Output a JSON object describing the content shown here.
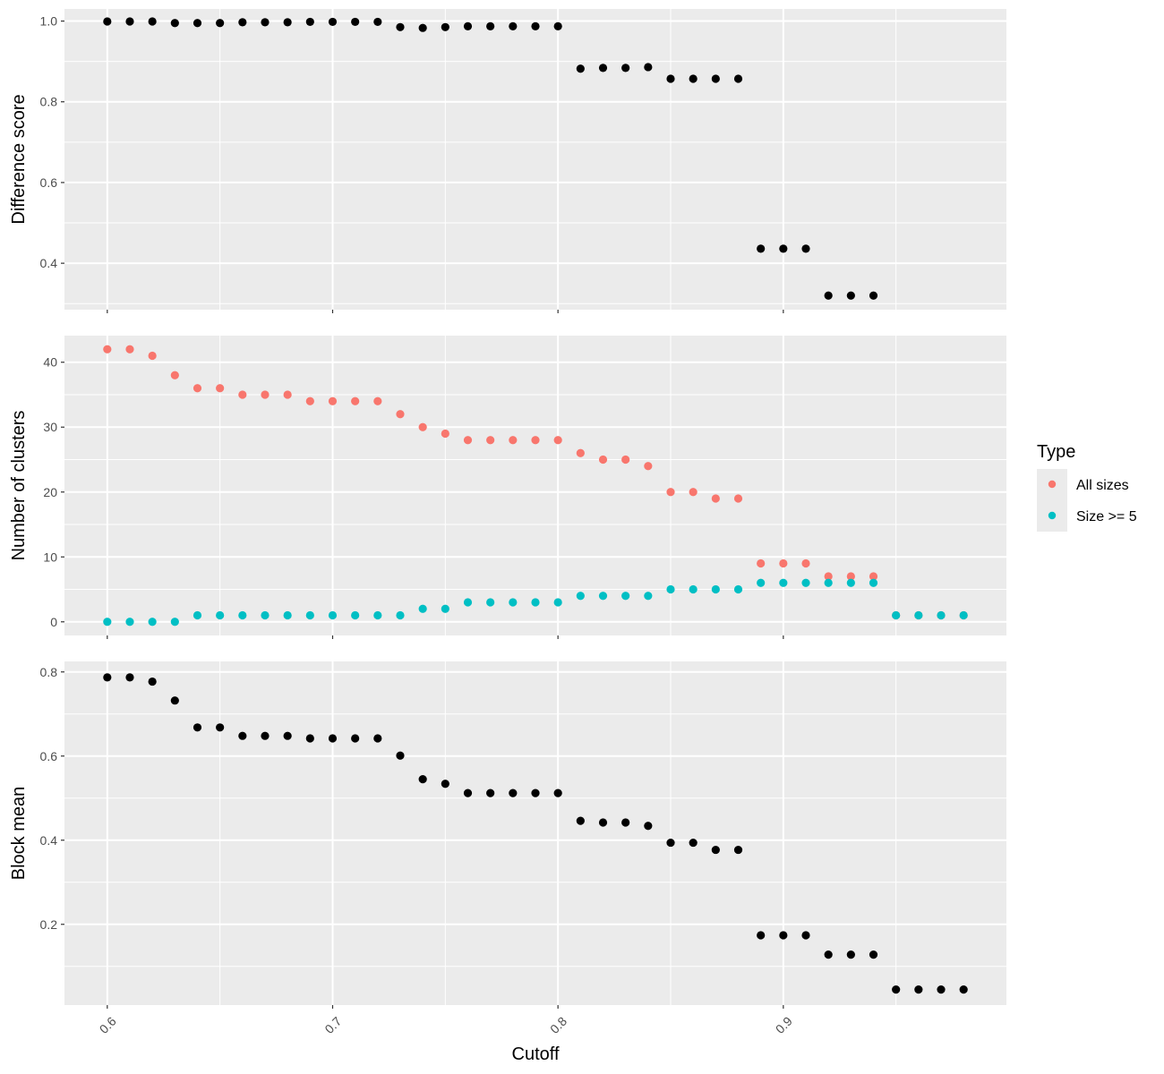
{
  "chart_data": [
    {
      "type": "scatter",
      "title": "",
      "xlabel": "",
      "ylabel": "Difference score",
      "xlim": [
        0.581,
        0.999
      ],
      "ylim": [
        0.285,
        1.03
      ],
      "yticks": [
        0.4,
        0.6,
        0.8,
        1.0
      ],
      "yticklabels": [
        "0.4",
        "0.6",
        "0.8",
        "1.0"
      ],
      "grid": true,
      "series": [
        {
          "color": "#000000",
          "x": [
            0.6,
            0.61,
            0.62,
            0.63,
            0.64,
            0.65,
            0.66,
            0.67,
            0.68,
            0.69,
            0.7,
            0.71,
            0.72,
            0.73,
            0.74,
            0.75,
            0.76,
            0.77,
            0.78,
            0.79,
            0.8,
            0.81,
            0.82,
            0.83,
            0.84,
            0.85,
            0.86,
            0.87,
            0.88,
            0.89,
            0.9,
            0.91,
            0.92,
            0.93,
            0.94
          ],
          "y": [
            0.999,
            0.999,
            0.999,
            0.995,
            0.995,
            0.995,
            0.997,
            0.997,
            0.997,
            0.998,
            0.998,
            0.998,
            0.998,
            0.985,
            0.983,
            0.985,
            0.987,
            0.987,
            0.987,
            0.987,
            0.987,
            0.882,
            0.884,
            0.884,
            0.886,
            0.857,
            0.857,
            0.857,
            0.857,
            0.436,
            0.436,
            0.436,
            0.32,
            0.32,
            0.32
          ]
        }
      ]
    },
    {
      "type": "scatter",
      "title": "",
      "xlabel": "",
      "ylabel": "Number of clusters",
      "xlim": [
        0.581,
        0.999
      ],
      "ylim": [
        -2.1,
        44.1
      ],
      "yticks": [
        0,
        10,
        20,
        30,
        40
      ],
      "yticklabels": [
        "0",
        "10",
        "20",
        "30",
        "40"
      ],
      "grid": true,
      "legend": {
        "title": "Type",
        "placement": "right",
        "entries": [
          {
            "label": "All sizes",
            "color": "#F8766D"
          },
          {
            "label": "Size >= 5",
            "color": "#00BFC4"
          }
        ]
      },
      "series": [
        {
          "name": "All sizes",
          "color": "#F8766D",
          "x": [
            0.6,
            0.61,
            0.62,
            0.63,
            0.64,
            0.65,
            0.66,
            0.67,
            0.68,
            0.69,
            0.7,
            0.71,
            0.72,
            0.73,
            0.74,
            0.75,
            0.76,
            0.77,
            0.78,
            0.79,
            0.8,
            0.81,
            0.82,
            0.83,
            0.84,
            0.85,
            0.86,
            0.87,
            0.88,
            0.89,
            0.9,
            0.91,
            0.92,
            0.93,
            0.94,
            0.95,
            0.96,
            0.97,
            0.98
          ],
          "y": [
            42,
            42,
            41,
            38,
            36,
            36,
            35,
            35,
            35,
            34,
            34,
            34,
            34,
            32,
            30,
            29,
            28,
            28,
            28,
            28,
            28,
            26,
            25,
            25,
            24,
            20,
            20,
            19,
            19,
            9,
            9,
            9,
            7,
            7,
            7,
            1,
            1,
            1,
            1
          ]
        },
        {
          "name": "Size >= 5",
          "color": "#00BFC4",
          "x": [
            0.6,
            0.61,
            0.62,
            0.63,
            0.64,
            0.65,
            0.66,
            0.67,
            0.68,
            0.69,
            0.7,
            0.71,
            0.72,
            0.73,
            0.74,
            0.75,
            0.76,
            0.77,
            0.78,
            0.79,
            0.8,
            0.81,
            0.82,
            0.83,
            0.84,
            0.85,
            0.86,
            0.87,
            0.88,
            0.89,
            0.9,
            0.91,
            0.92,
            0.93,
            0.94,
            0.95,
            0.96,
            0.97,
            0.98
          ],
          "y": [
            0,
            0,
            0,
            0,
            1,
            1,
            1,
            1,
            1,
            1,
            1,
            1,
            1,
            1,
            2,
            2,
            3,
            3,
            3,
            3,
            3,
            4,
            4,
            4,
            4,
            5,
            5,
            5,
            5,
            6,
            6,
            6,
            6,
            6,
            6,
            1,
            1,
            1,
            1
          ]
        }
      ]
    },
    {
      "type": "scatter",
      "title": "",
      "xlabel": "Cutoff",
      "ylabel": "Block mean",
      "xlim": [
        0.581,
        0.999
      ],
      "ylim": [
        0.008,
        0.825
      ],
      "xticks": [
        0.6,
        0.7,
        0.8,
        0.9
      ],
      "xticklabels": [
        "0.6",
        "0.7",
        "0.8",
        "0.9"
      ],
      "yticks": [
        0.2,
        0.4,
        0.6,
        0.8
      ],
      "yticklabels": [
        "0.2",
        "0.4",
        "0.6",
        "0.8"
      ],
      "grid": true,
      "series": [
        {
          "color": "#000000",
          "x": [
            0.6,
            0.61,
            0.62,
            0.63,
            0.64,
            0.65,
            0.66,
            0.67,
            0.68,
            0.69,
            0.7,
            0.71,
            0.72,
            0.73,
            0.74,
            0.75,
            0.76,
            0.77,
            0.78,
            0.79,
            0.8,
            0.81,
            0.82,
            0.83,
            0.84,
            0.85,
            0.86,
            0.87,
            0.88,
            0.89,
            0.9,
            0.91,
            0.92,
            0.93,
            0.94,
            0.95,
            0.96,
            0.97,
            0.98
          ],
          "y": [
            0.787,
            0.787,
            0.777,
            0.732,
            0.668,
            0.668,
            0.648,
            0.648,
            0.648,
            0.642,
            0.642,
            0.642,
            0.642,
            0.601,
            0.545,
            0.534,
            0.512,
            0.512,
            0.512,
            0.512,
            0.512,
            0.446,
            0.442,
            0.442,
            0.434,
            0.394,
            0.394,
            0.377,
            0.377,
            0.174,
            0.174,
            0.174,
            0.128,
            0.128,
            0.128,
            0.045,
            0.045,
            0.045,
            0.045
          ]
        }
      ]
    }
  ]
}
